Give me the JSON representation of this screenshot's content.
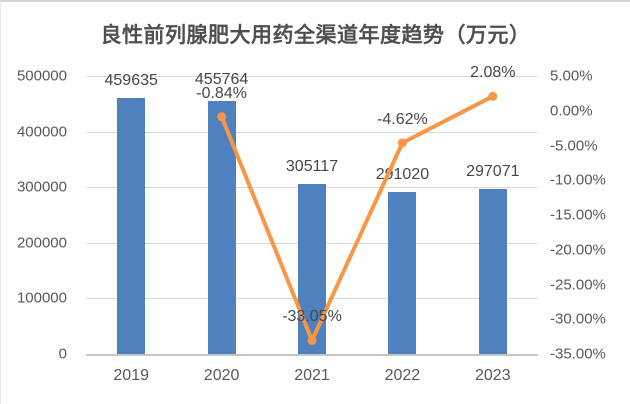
{
  "title": "良性前列腺肥大用药全渠道年度趋势（万元）",
  "chart_data": {
    "type": "bar",
    "subtype": "combo-bar-line-dual-axis",
    "title": "良性前列腺肥大用药全渠道年度趋势（万元）",
    "categories": [
      "2019",
      "2020",
      "2021",
      "2022",
      "2023"
    ],
    "series": [
      {
        "name": "bar-series",
        "type": "bar",
        "axis": "left",
        "values": [
          459635,
          455764,
          305117,
          291020,
          297071
        ],
        "data_labels": [
          "459635",
          "455764",
          "305117",
          "291020",
          "297071"
        ]
      },
      {
        "name": "line-series",
        "type": "line",
        "axis": "right",
        "values": [
          null,
          -0.84,
          -33.05,
          -4.62,
          2.08
        ],
        "data_labels": [
          null,
          "-0.84%",
          "-33.05%",
          "-4.62%",
          "2.08%"
        ]
      }
    ],
    "left_axis": {
      "min": 0,
      "max": 500000,
      "step": 100000,
      "tick_labels": [
        "500000",
        "400000",
        "300000",
        "200000",
        "100000",
        "0"
      ]
    },
    "right_axis": {
      "min": -35,
      "max": 5,
      "step": 5,
      "tick_labels": [
        "5.00%",
        "0.00%",
        "-5.00%",
        "-10.00%",
        "-15.00%",
        "-20.00%",
        "-25.00%",
        "-30.00%",
        "-35.00%"
      ]
    },
    "grid": true,
    "legend": "none",
    "colors": {
      "bar": "#4F81BD",
      "line": "#F79646",
      "grid": "#D9D9D9",
      "axis_line": "#C6C6C6",
      "axis_text": "#595959",
      "label_text": "#474747",
      "title_text": "#4F4F4F"
    }
  }
}
